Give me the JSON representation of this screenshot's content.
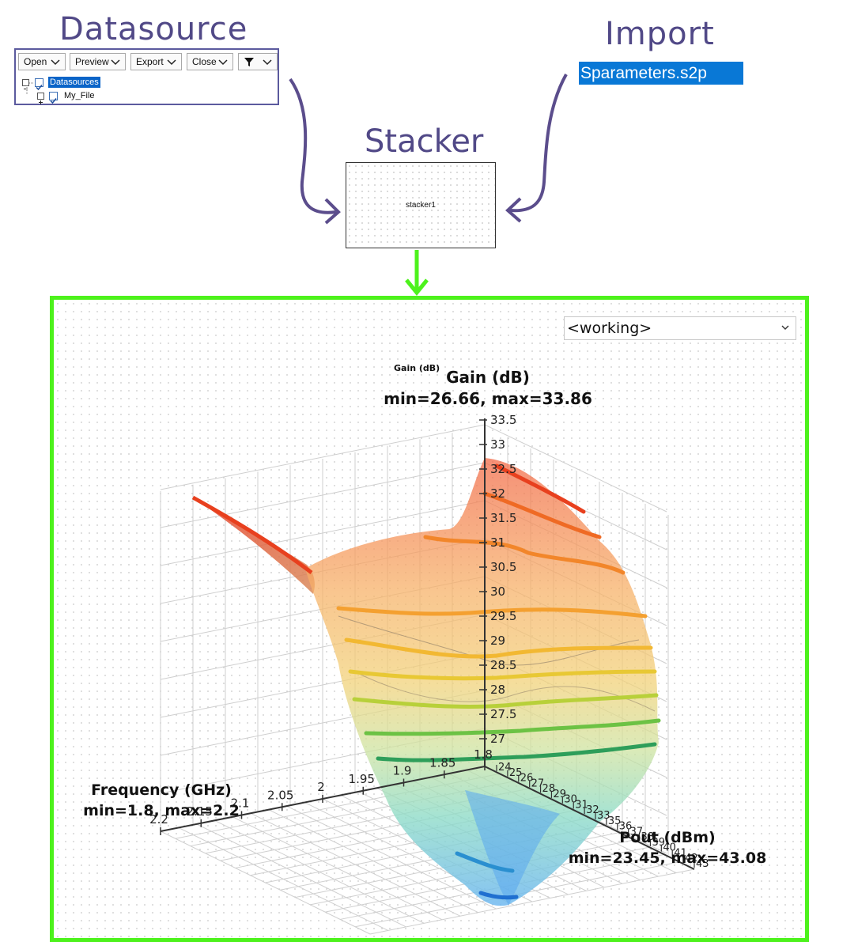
{
  "datasource": {
    "title": "Datasource",
    "toolbar": [
      {
        "label": "Open",
        "icon": "chevron-down-icon"
      },
      {
        "label": "Preview",
        "icon": "chevron-down-icon"
      },
      {
        "label": "Export",
        "icon": "chevron-down-icon"
      },
      {
        "label": "Close",
        "icon": "chevron-down-icon"
      },
      {
        "label": "",
        "icon": "filter-icon"
      }
    ],
    "tree": {
      "root": "Datasources",
      "child": "My_File"
    }
  },
  "import": {
    "title": "Import",
    "file": "Sparameters.s2p"
  },
  "stacker": {
    "title": "Stacker",
    "node_label": "stacker1"
  },
  "viewer": {
    "selector_value": "<working>"
  },
  "colors": {
    "title_purple": "#514987",
    "arrow_purple": "#5b4d8c",
    "panel_border": "#4df21c",
    "import_highlight": "#0978d6"
  },
  "chart_data": {
    "type": "surface",
    "title_small": "Gain (dB)",
    "z": {
      "label": "Gain (dB)",
      "range_text": "min=26.66, max=33.86",
      "ticks": [
        "27",
        "27.5",
        "28",
        "28.5",
        "29",
        "29.5",
        "30",
        "30.5",
        "31",
        "31.5",
        "32",
        "32.5",
        "33",
        "33.5"
      ]
    },
    "x": {
      "label": "Frequency (GHz)",
      "range_text": "min=1.8, max=2.2",
      "ticks": [
        "1.8",
        "1.85",
        "1.9",
        "1.95",
        "2",
        "2.05",
        "2.1",
        "2.15",
        "2.2"
      ]
    },
    "y": {
      "label": "Pout (dBm)",
      "range_text": "min=23.45, max=43.08",
      "ticks": [
        "24",
        "25",
        "26",
        "27",
        "28",
        "29",
        "30",
        "31",
        "32",
        "33",
        "35",
        "36",
        "37",
        "38",
        "39",
        "40",
        "41",
        "42",
        "43"
      ]
    },
    "grid": true
  }
}
